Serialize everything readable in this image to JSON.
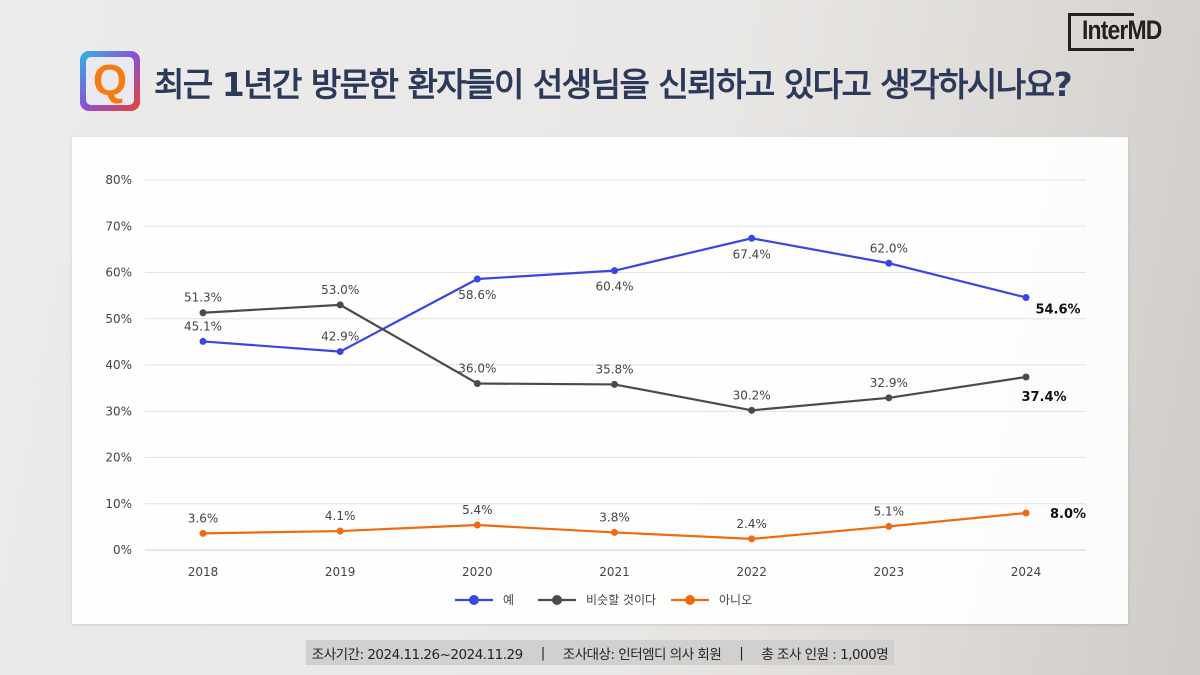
{
  "logo": {
    "text": "InterMD"
  },
  "header": {
    "icon_letter": "Q",
    "title": "최근 1년간 방문한 환자들이 선생님을 신뢰하고 있다고 생각하시나요?"
  },
  "chart_data": {
    "type": "line",
    "title": "최근 1년간 방문한 환자들이 선생님을 신뢰하고 있다고 생각하시나요?",
    "categories": [
      "2018",
      "2019",
      "2020",
      "2021",
      "2022",
      "2023",
      "2024"
    ],
    "ylim": [
      0,
      80
    ],
    "yticks": [
      "0%",
      "10%",
      "20%",
      "30%",
      "40%",
      "50%",
      "60%",
      "70%",
      "80%"
    ],
    "grid": true,
    "legend_position": "bottom",
    "series": [
      {
        "name": "예",
        "color": "#3a46e0",
        "values": [
          45.1,
          42.9,
          58.6,
          60.4,
          67.4,
          62.0,
          54.6
        ],
        "labels": [
          "45.1%",
          "42.9%",
          "58.6%",
          "60.4%",
          "67.4%",
          "62.0%",
          "54.6%"
        ]
      },
      {
        "name": "비슷할 것이다",
        "color": "#4a4a4a",
        "values": [
          51.3,
          53.0,
          36.0,
          35.8,
          30.2,
          32.9,
          37.4
        ],
        "labels": [
          "51.3%",
          "53.0%",
          "36.0%",
          "35.8%",
          "30.2%",
          "32.9%",
          "37.4%"
        ]
      },
      {
        "name": "아니오",
        "color": "#f26a10",
        "values": [
          3.6,
          4.1,
          5.4,
          3.8,
          2.4,
          5.1,
          8.0
        ],
        "labels": [
          "3.6%",
          "4.1%",
          "5.4%",
          "3.8%",
          "2.4%",
          "5.1%",
          "8.0%"
        ]
      }
    ]
  },
  "footer": {
    "period": "조사기간: 2024.11.26~2024.11.29",
    "sep": "|",
    "target": "조사대상: 인터엠디 의사 회원",
    "count": "총 조사 인원 : 1,000명"
  }
}
